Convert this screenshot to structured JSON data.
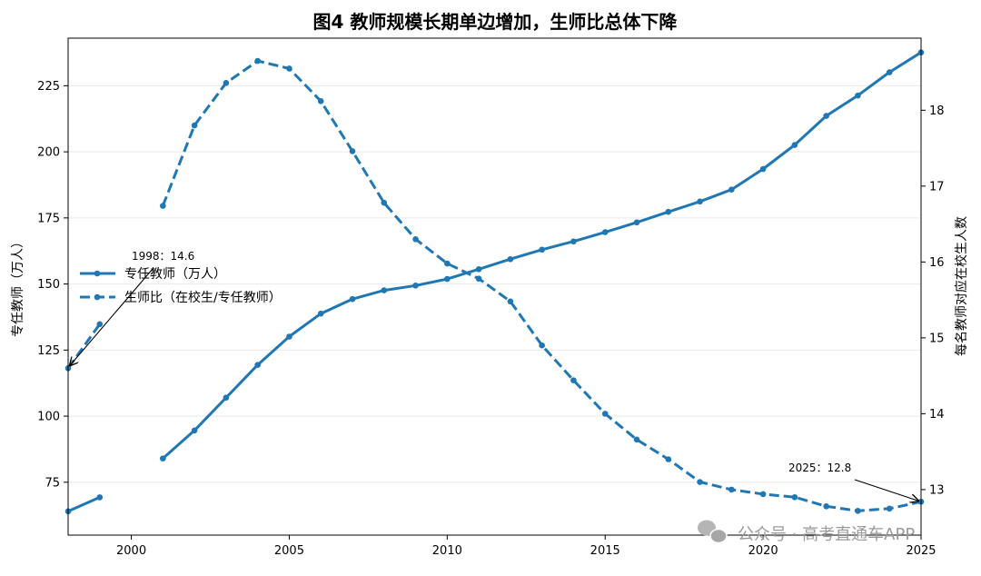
{
  "chart_data": {
    "type": "line",
    "title": "图4  教师规模长期单边增加，生师比总体下降",
    "xlabel": "",
    "ylabel_left": "专任教师（万人）",
    "ylabel_right": "每名教师对应在校生人数",
    "xlim": [
      1998,
      2025
    ],
    "ylim_left": [
      55,
      243
    ],
    "ylim_right": [
      12.4,
      18.95
    ],
    "x_ticks": [
      2000,
      2005,
      2010,
      2015,
      2020,
      2025
    ],
    "y_ticks_left": [
      75,
      100,
      125,
      150,
      175,
      200,
      225
    ],
    "y_ticks_right": [
      13,
      14,
      15,
      16,
      17,
      18
    ],
    "grid": "horizontal",
    "legend_position": "center-left",
    "color": "#1f77b4",
    "series": [
      {
        "name": "专任教师（万人）",
        "axis": "left",
        "style": "solid",
        "x": [
          1998,
          1999,
          2001,
          2002,
          2003,
          2004,
          2005,
          2006,
          2007,
          2008,
          2009,
          2010,
          2011,
          2012,
          2013,
          2014,
          2015,
          2016,
          2017,
          2018,
          2019,
          2020,
          2021,
          2022,
          2023,
          2024,
          2025
        ],
        "values": [
          64,
          69.3,
          84,
          94.6,
          107,
          119.4,
          130.1,
          138.8,
          144.3,
          147.6,
          149.4,
          151.9,
          155.6,
          159.4,
          163,
          166.1,
          169.6,
          173.3,
          177.3,
          181.2,
          185.7,
          193.5,
          202.6,
          213.6,
          221.3,
          230.1,
          237.6
        ]
      },
      {
        "name": "生师比（在校生/专任教师）",
        "axis": "right",
        "style": "dashed",
        "x": [
          1998,
          1999,
          2001,
          2002,
          2003,
          2004,
          2005,
          2006,
          2007,
          2008,
          2009,
          2010,
          2011,
          2012,
          2013,
          2014,
          2015,
          2016,
          2017,
          2018,
          2019,
          2020,
          2021,
          2022,
          2023,
          2024,
          2025
        ],
        "values": [
          14.6,
          15.18,
          16.74,
          17.8,
          18.36,
          18.65,
          18.55,
          18.12,
          17.46,
          16.78,
          16.3,
          15.98,
          15.78,
          15.48,
          14.9,
          14.44,
          14.0,
          13.66,
          13.4,
          13.1,
          13.0,
          12.94,
          12.9,
          12.78,
          12.72,
          12.75,
          12.84
        ]
      }
    ],
    "annotations": [
      {
        "text": "1998：14.6",
        "x": 1998,
        "y": 14.6,
        "axis": "right"
      },
      {
        "text": "2025：12.8",
        "x": 2025,
        "y": 12.84,
        "axis": "right"
      }
    ]
  },
  "watermark": {
    "text": "公众号 · 高考直通车APP",
    "icon": "wechat-icon"
  }
}
